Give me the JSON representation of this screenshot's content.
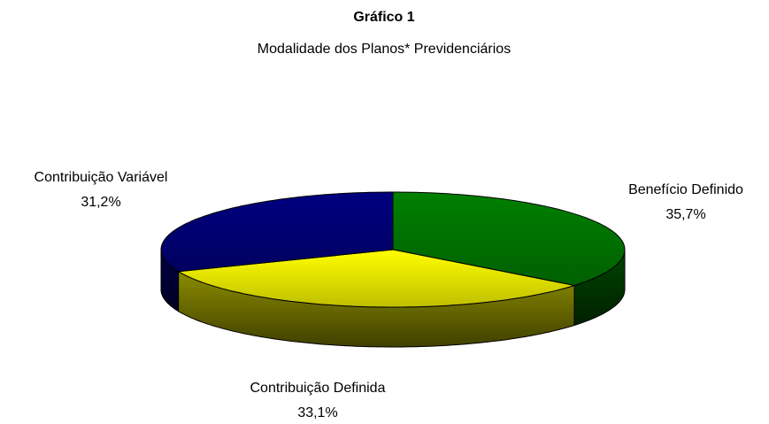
{
  "chart_data": {
    "type": "pie",
    "title": "Gráfico 1",
    "subtitle": "Modalidade dos Planos* Previdenciários",
    "categories": [
      "Benefício Definido",
      "Contribuição Definida",
      "Contribuição Variável"
    ],
    "values": [
      35.7,
      33.1,
      31.2
    ],
    "value_labels": [
      "35,7%",
      "33,1%",
      "31,2%"
    ],
    "colors": [
      "#008000",
      "#ffff00",
      "#000080"
    ]
  }
}
